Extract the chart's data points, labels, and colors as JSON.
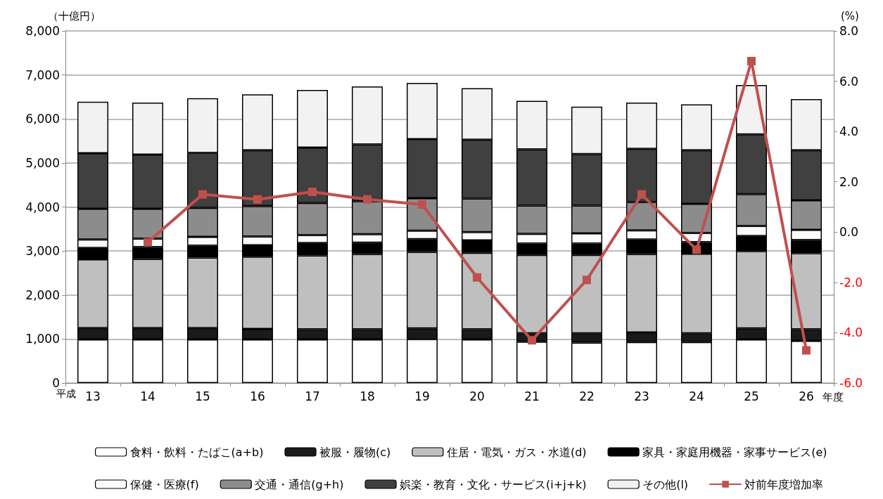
{
  "chart_data": {
    "type": "bar",
    "stacked": true,
    "categories": [
      "13",
      "14",
      "15",
      "16",
      "17",
      "18",
      "19",
      "20",
      "21",
      "22",
      "23",
      "24",
      "25",
      "26"
    ],
    "xlabel": "年度",
    "ylabel": "（十億円）",
    "y2label": "(%)",
    "annotations": [
      "平成"
    ],
    "ylim": [
      0,
      8000
    ],
    "yticks": [
      {
        "value": 0,
        "label": "0"
      },
      {
        "value": 1000,
        "label": "1,000"
      },
      {
        "value": 2000,
        "label": "2,000"
      },
      {
        "value": 3000,
        "label": "3,000"
      },
      {
        "value": 4000,
        "label": "4,000"
      },
      {
        "value": 5000,
        "label": "5,000"
      },
      {
        "value": 6000,
        "label": "6,000"
      },
      {
        "value": 7000,
        "label": "7,000"
      },
      {
        "value": 8000,
        "label": "8,000"
      }
    ],
    "y2lim": [
      -6,
      8
    ],
    "y2ticks": [
      {
        "value": -6,
        "label": "-6.0"
      },
      {
        "value": -4,
        "label": "-4.0"
      },
      {
        "value": -2,
        "label": "-2.0"
      },
      {
        "value": 0,
        "label": "0.0"
      },
      {
        "value": 2,
        "label": "2.0"
      },
      {
        "value": 4,
        "label": "4.0"
      },
      {
        "value": 6,
        "label": "6.0"
      },
      {
        "value": 8,
        "label": "8.0"
      }
    ],
    "grid": "y",
    "legend": "bottom",
    "series": [
      {
        "name": "食料・飲料・たばこ(a+b)",
        "color": "#ffffff",
        "values": [
          990,
          990,
          990,
          990,
          990,
          990,
          1000,
          990,
          940,
          920,
          930,
          930,
          990,
          960
        ]
      },
      {
        "name": "被服・履物(c)",
        "color": "#1a1a1a",
        "values": [
          260,
          260,
          260,
          240,
          230,
          230,
          240,
          230,
          190,
          210,
          220,
          200,
          250,
          260
        ]
      },
      {
        "name": "住居・電気・ガス・水道(d)",
        "color": "#bfbfbf",
        "values": [
          1560,
          1570,
          1600,
          1640,
          1680,
          1710,
          1740,
          1740,
          1780,
          1780,
          1780,
          1810,
          1760,
          1730
        ]
      },
      {
        "name": "家具・家庭用機器・家事サービス(e)",
        "color": "#000000",
        "values": [
          260,
          270,
          270,
          260,
          280,
          260,
          290,
          280,
          260,
          260,
          330,
          260,
          340,
          300
        ]
      },
      {
        "name": "保健・医療(f)",
        "color": "#fafafa",
        "values": [
          190,
          190,
          200,
          200,
          180,
          190,
          190,
          190,
          220,
          230,
          210,
          210,
          230,
          230
        ]
      },
      {
        "name": "交通・通信(g+h)",
        "color": "#8c8c8c",
        "values": [
          700,
          680,
          660,
          690,
          730,
          750,
          740,
          760,
          640,
          630,
          640,
          660,
          720,
          670
        ]
      },
      {
        "name": "娯楽・教育・文化・サービス(i+j+k)",
        "color": "#404040",
        "values": [
          1260,
          1230,
          1250,
          1270,
          1260,
          1290,
          1340,
          1340,
          1280,
          1170,
          1210,
          1220,
          1360,
          1140
        ]
      },
      {
        "name": "その他(l)",
        "color": "#f2f2f2",
        "values": [
          1170,
          1180,
          1240,
          1270,
          1310,
          1320,
          1280,
          1170,
          1100,
          1080,
          1050,
          1040,
          1120,
          1160
        ]
      },
      {
        "name": "対前年度増加率",
        "type": "line",
        "axis": "y2",
        "color": "#c0504d",
        "marker": "square",
        "line_style": "solid",
        "values": [
          null,
          -0.4,
          1.5,
          1.3,
          1.6,
          1.3,
          1.1,
          -1.8,
          -4.3,
          -1.9,
          1.5,
          -0.7,
          6.8,
          -4.7
        ]
      }
    ]
  }
}
